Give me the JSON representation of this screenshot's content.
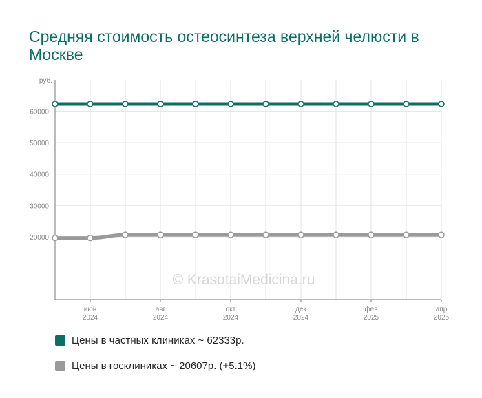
{
  "title": "Средняя стоимость остеосинтеза верхней челюсти в Москве",
  "watermark": "© KrasotaiMedicina.ru",
  "chart_data": {
    "type": "line",
    "y_unit": "руб.",
    "ylim": [
      0,
      70000
    ],
    "yticks": [
      20000,
      30000,
      40000,
      50000,
      60000
    ],
    "x": [
      "2024-05",
      "2024-06",
      "2024-07",
      "2024-08",
      "2024-09",
      "2024-10",
      "2024-11",
      "2024-12",
      "2025-01",
      "2025-02",
      "2025-03",
      "2025-04"
    ],
    "x_tick_labels": [
      {
        "x": "2024-06",
        "month": "июн",
        "year": "2024"
      },
      {
        "x": "2024-08",
        "month": "авг",
        "year": "2024"
      },
      {
        "x": "2024-10",
        "month": "окт",
        "year": "2024"
      },
      {
        "x": "2024-12",
        "month": "дек",
        "year": "2024"
      },
      {
        "x": "2025-02",
        "month": "фев",
        "year": "2025"
      },
      {
        "x": "2025-04",
        "month": "апр",
        "year": "2025"
      }
    ],
    "grid": true,
    "legend_position": "bottom-left",
    "series": [
      {
        "name": "Цены в частных клиниках ~ 62333р.",
        "color": "#0d6e66",
        "values": [
          62333,
          62333,
          62333,
          62333,
          62333,
          62333,
          62333,
          62333,
          62333,
          62333,
          62333,
          62333
        ]
      },
      {
        "name": "Цены в госклиниках ~ 20607р. (+5.1%)",
        "color": "#9a9a9a",
        "values": [
          19600,
          19600,
          20607,
          20607,
          20607,
          20607,
          20607,
          20607,
          20607,
          20607,
          20607,
          20607
        ]
      }
    ]
  }
}
